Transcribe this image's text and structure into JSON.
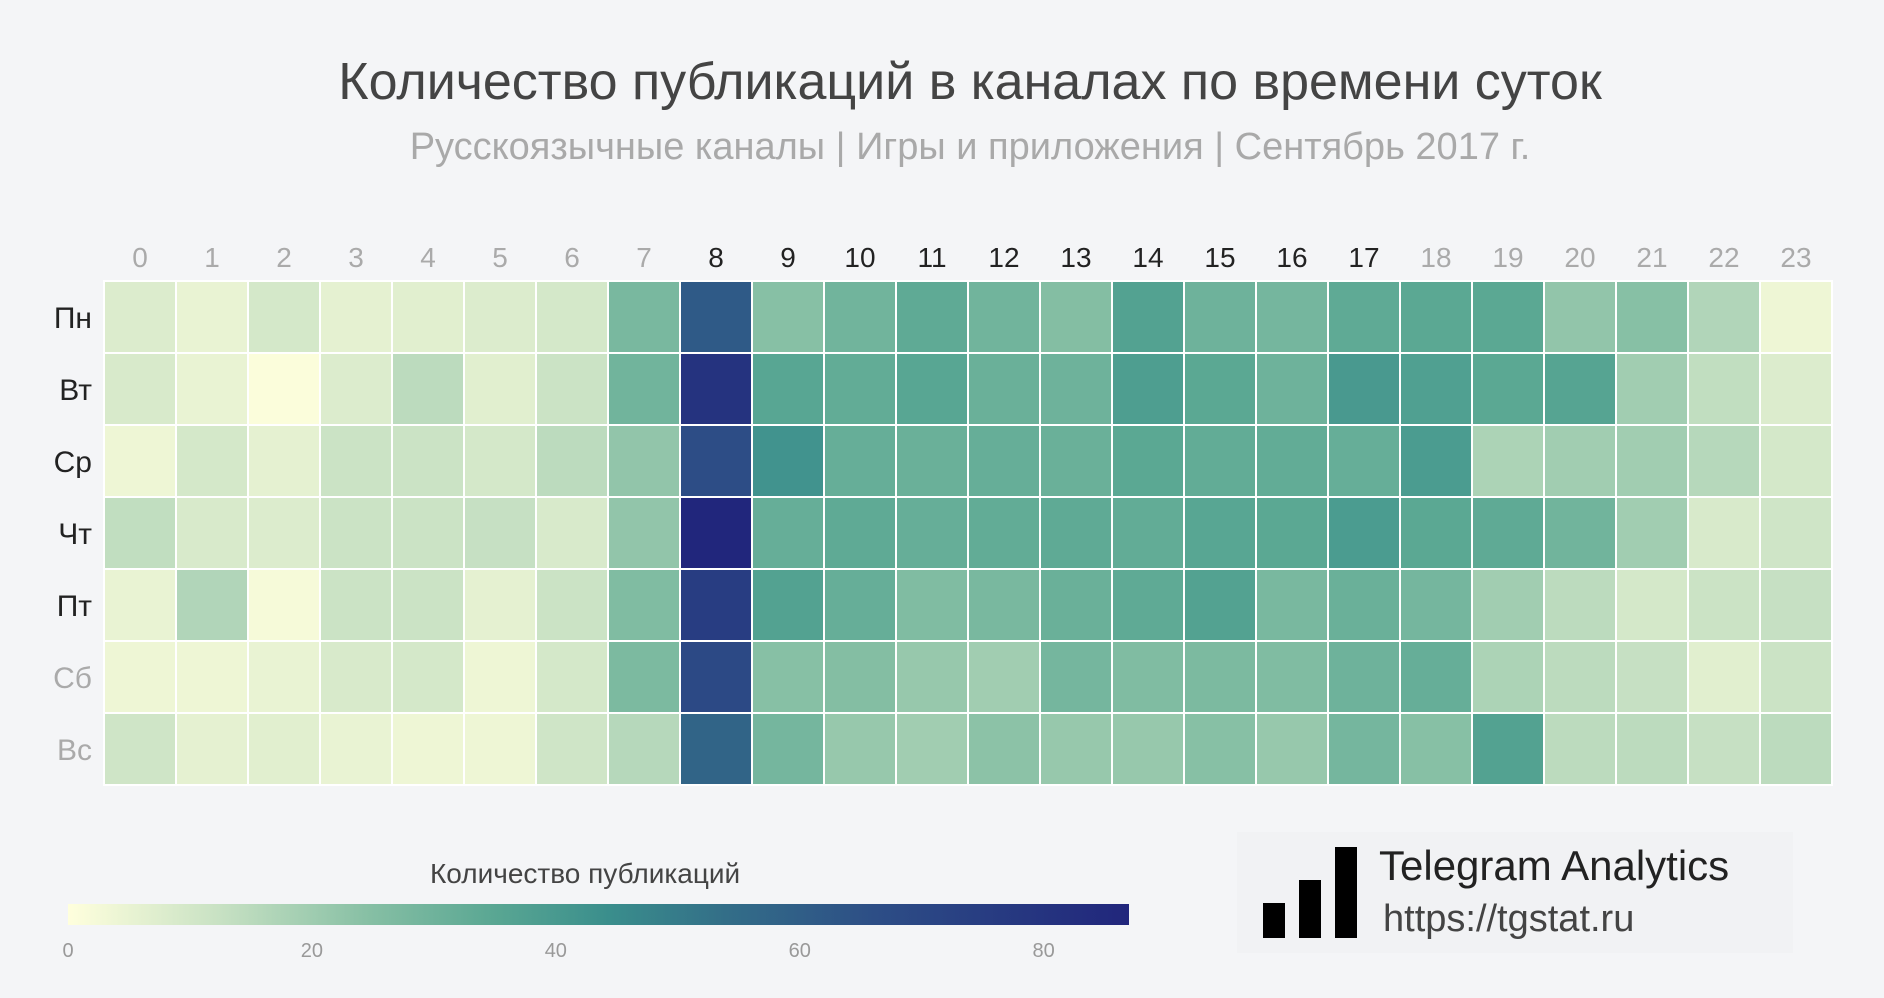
{
  "header": {
    "title": "Количество публикаций в каналах по времени суток",
    "subtitle": "Русскоязычные каналы | Игры и приложения | Сентябрь 2017 г."
  },
  "chart_data": {
    "type": "heatmap",
    "title": "Количество публикаций в каналах по времени суток",
    "subtitle": "Русскоязычные каналы | Игры и приложения | Сентябрь 2017 г.",
    "x": [
      "0",
      "1",
      "2",
      "3",
      "4",
      "5",
      "6",
      "7",
      "8",
      "9",
      "10",
      "11",
      "12",
      "13",
      "14",
      "15",
      "16",
      "17",
      "18",
      "19",
      "20",
      "21",
      "22",
      "23"
    ],
    "y": [
      "Пн",
      "Вт",
      "Ср",
      "Чт",
      "Пт",
      "Сб",
      "Вс"
    ],
    "x_label_colors": [
      "#aaaaaa",
      "#aaaaaa",
      "#aaaaaa",
      "#aaaaaa",
      "#aaaaaa",
      "#aaaaaa",
      "#aaaaaa",
      "#aaaaaa",
      "#222222",
      "#222222",
      "#222222",
      "#222222",
      "#222222",
      "#222222",
      "#222222",
      "#222222",
      "#222222",
      "#222222",
      "#aaaaaa",
      "#aaaaaa",
      "#aaaaaa",
      "#aaaaaa",
      "#aaaaaa",
      "#aaaaaa"
    ],
    "y_label_colors": [
      "#222222",
      "#222222",
      "#222222",
      "#222222",
      "#222222",
      "#aaaaaa",
      "#aaaaaa"
    ],
    "values": [
      [
        8,
        5,
        10,
        6,
        7,
        8,
        10,
        29,
        70,
        25,
        31,
        36,
        31,
        26,
        40,
        32,
        30,
        36,
        37,
        37,
        23,
        25,
        17,
        4
      ],
      [
        9,
        5,
        1,
        8,
        15,
        7,
        12,
        31,
        83,
        38,
        35,
        38,
        33,
        32,
        42,
        37,
        32,
        44,
        41,
        37,
        39,
        20,
        14,
        8
      ],
      [
        4,
        10,
        6,
        12,
        12,
        10,
        15,
        23,
        75,
        47,
        34,
        33,
        34,
        33,
        37,
        35,
        35,
        34,
        43,
        18,
        20,
        20,
        16,
        10
      ],
      [
        14,
        9,
        8,
        12,
        12,
        13,
        9,
        23,
        87,
        34,
        36,
        34,
        35,
        36,
        35,
        38,
        37,
        43,
        37,
        36,
        31,
        20,
        9,
        11
      ],
      [
        5,
        17,
        2,
        12,
        12,
        6,
        12,
        27,
        80,
        40,
        34,
        27,
        29,
        33,
        36,
        40,
        29,
        33,
        30,
        20,
        15,
        10,
        12,
        13
      ],
      [
        4,
        4,
        5,
        9,
        10,
        4,
        10,
        28,
        76,
        25,
        26,
        22,
        20,
        30,
        27,
        28,
        27,
        32,
        34,
        18,
        15,
        13,
        7,
        12
      ],
      [
        11,
        6,
        7,
        5,
        4,
        4,
        11,
        16,
        66,
        30,
        22,
        20,
        24,
        22,
        22,
        25,
        22,
        30,
        25,
        40,
        15,
        15,
        13,
        15
      ]
    ],
    "zmin": 0,
    "zmax": 87,
    "colorscale": [
      "#ffffdd",
      "#c9e2c4",
      "#88c0a5",
      "#5aa793",
      "#3a8e8c",
      "#336e88",
      "#2d4e86",
      "#21267c"
    ],
    "colorbar": {
      "title": "Количество публикаций",
      "ticks": [
        "0",
        "20",
        "40",
        "60",
        "80"
      ],
      "tick_values": [
        0,
        20,
        40,
        60,
        80
      ],
      "placement": "bottom"
    }
  },
  "brand": {
    "name": "Telegram Analytics",
    "url": "https://tgstat.ru"
  }
}
